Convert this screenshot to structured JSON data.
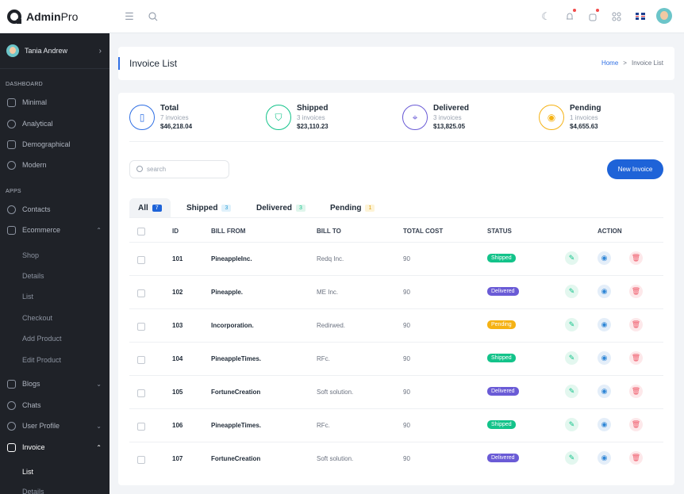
{
  "brand": {
    "bold": "Admin",
    "light": "Pro"
  },
  "user": {
    "name": "Tania Andrew"
  },
  "sidebar": {
    "sections": {
      "dashboard": "DASHBOARD",
      "apps": "APPS"
    },
    "dashboard_items": [
      "Minimal",
      "Analytical",
      "Demographical",
      "Modern"
    ],
    "apps_items": [
      "Contacts",
      "Ecommerce"
    ],
    "ecommerce_sub": [
      "Shop",
      "Details",
      "List",
      "Checkout",
      "Add Product",
      "Edit Product"
    ],
    "more_items": [
      "Blogs",
      "Chats",
      "User Profile",
      "Invoice"
    ],
    "invoice_sub": [
      "List",
      "Details"
    ]
  },
  "breadcrumb": {
    "title": "Invoice List",
    "home": "Home",
    "separator": ">",
    "current": "Invoice List"
  },
  "stats": [
    {
      "title": "Total",
      "sub": "7 invoices",
      "amount": "$46,218.04",
      "color": "#2f6fe4"
    },
    {
      "title": "Shipped",
      "sub": "3 invoices",
      "amount": "$23,110.23",
      "color": "#13c38a"
    },
    {
      "title": "Delivered",
      "sub": "3 invoices",
      "amount": "$13,825.05",
      "color": "#6a5bd6"
    },
    {
      "title": "Pending",
      "sub": "1 invoices",
      "amount": "$4,655.63",
      "color": "#f5b214"
    }
  ],
  "search": {
    "placeholder": "search"
  },
  "new_invoice_label": "New Invoice",
  "tabs": [
    {
      "label": "All",
      "count": "7"
    },
    {
      "label": "Shipped",
      "count": "3"
    },
    {
      "label": "Delivered",
      "count": "3"
    },
    {
      "label": "Pending",
      "count": "1"
    }
  ],
  "table": {
    "headers": [
      "ID",
      "BILL FROM",
      "BILL TO",
      "TOTAL COST",
      "STATUS",
      "ACTION"
    ],
    "rows": [
      {
        "id": "101",
        "from": "PineappleInc.",
        "to": "Redq Inc.",
        "cost": "90",
        "status": "Shipped"
      },
      {
        "id": "102",
        "from": "Pineapple.",
        "to": "ME Inc.",
        "cost": "90",
        "status": "Delivered"
      },
      {
        "id": "103",
        "from": "Incorporation.",
        "to": "Redirwed.",
        "cost": "90",
        "status": "Pending"
      },
      {
        "id": "104",
        "from": "PineappleTimes.",
        "to": "RFc.",
        "cost": "90",
        "status": "Shipped"
      },
      {
        "id": "105",
        "from": "FortuneCreation",
        "to": "Soft solution.",
        "cost": "90",
        "status": "Delivered"
      },
      {
        "id": "106",
        "from": "PineappleTimes.",
        "to": "RFc.",
        "cost": "90",
        "status": "Shipped"
      },
      {
        "id": "107",
        "from": "FortuneCreation",
        "to": "Soft solution.",
        "cost": "90",
        "status": "Delivered"
      }
    ]
  },
  "status_colors": {
    "Shipped": "#13c38a",
    "Delivered": "#6a5bd6",
    "Pending": "#f5b214"
  },
  "icons": {
    "edit": "pencil-icon",
    "view": "eye-icon",
    "delete": "trash-icon"
  }
}
